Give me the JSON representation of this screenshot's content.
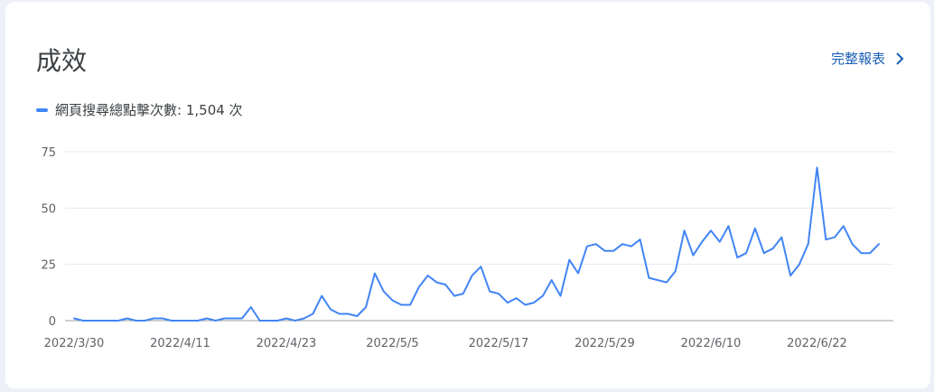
{
  "card": {
    "title": "成效",
    "full_report_label": "完整報表",
    "legend_label": "網頁搜尋總點擊次數",
    "legend_separator": ": ",
    "legend_value": "1,504 次"
  },
  "colors": {
    "line": "#4285f4",
    "grid": "#e8eaed",
    "axis": "#9aa0a6",
    "tick_text": "#5f6368",
    "link": "#1a5fb4"
  },
  "chart_data": {
    "type": "line",
    "series": [
      {
        "name": "網頁搜尋總點擊次數",
        "values": [
          1,
          0,
          0,
          0,
          0,
          0,
          1,
          0,
          0,
          1,
          1,
          0,
          0,
          0,
          0,
          1,
          0,
          1,
          1,
          1,
          6,
          0,
          0,
          0,
          1,
          0,
          1,
          3,
          11,
          5,
          3,
          3,
          2,
          6,
          21,
          13,
          9,
          7,
          7,
          15,
          20,
          17,
          16,
          11,
          12,
          20,
          24,
          13,
          12,
          8,
          10,
          7,
          8,
          11,
          18,
          11,
          27,
          21,
          33,
          34,
          31,
          31,
          34,
          33,
          36,
          19,
          18,
          17,
          22,
          40,
          29,
          35,
          40,
          35,
          42,
          28,
          30,
          41,
          30,
          32,
          37,
          20,
          25,
          34,
          68,
          36,
          37,
          42,
          34,
          30,
          30,
          34
        ]
      }
    ],
    "x_start": "2022/3/30",
    "x_tick_labels": [
      "2022/3/30",
      "2022/4/11",
      "2022/4/23",
      "2022/5/5",
      "2022/5/17",
      "2022/5/29",
      "2022/6/10",
      "2022/6/22"
    ],
    "x_tick_indices": [
      0,
      12,
      24,
      36,
      48,
      60,
      72,
      84
    ],
    "y_ticks": [
      0,
      25,
      50,
      75
    ],
    "ylim": [
      0,
      75
    ],
    "grid": true,
    "legend": "top-left"
  }
}
